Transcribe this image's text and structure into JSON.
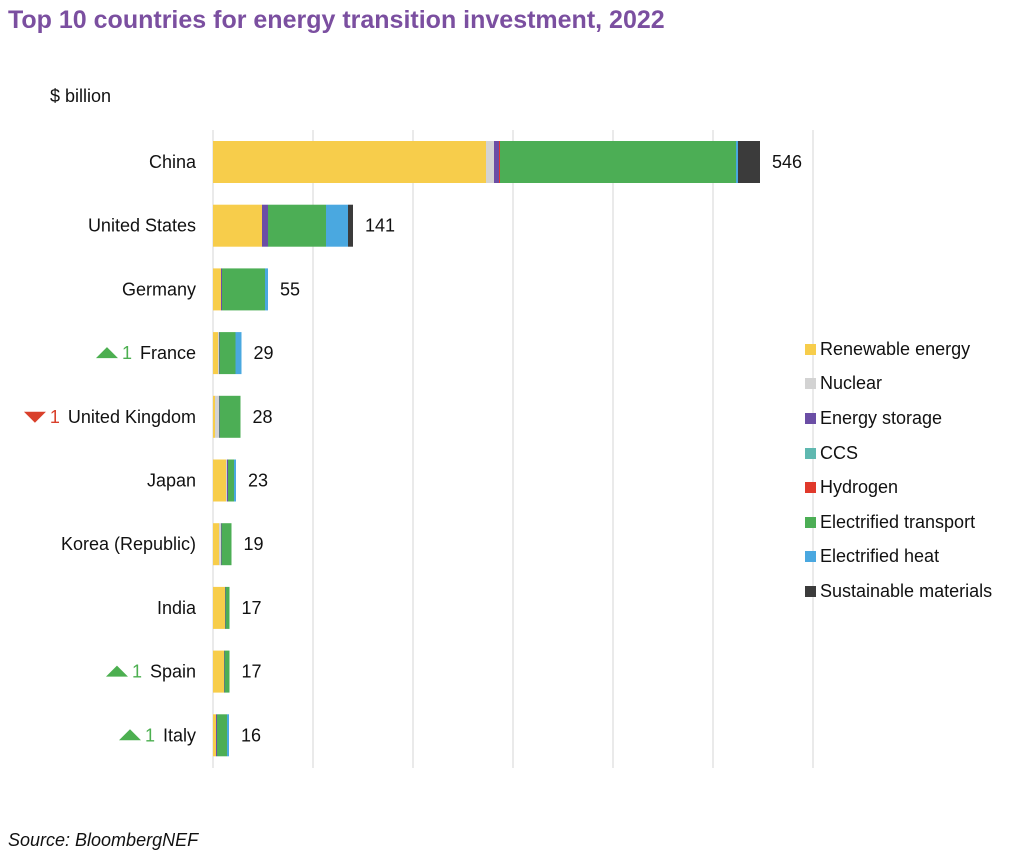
{
  "title": "Top 10 countries for energy transition investment, 2022",
  "source": "Source: BloombergNEF",
  "colors": {
    "up": "#4caf50",
    "down": "#d9402b",
    "grid": "#d4d4d4"
  },
  "chart_data": {
    "type": "bar",
    "orientation": "horizontal",
    "stacked": true,
    "title": "Top 10 countries for energy transition investment, 2022",
    "unit_label": "$ billion",
    "xlim": [
      0,
      600
    ],
    "grid": true,
    "legend_position": "right",
    "categories": [
      "China",
      "United States",
      "Germany",
      "France",
      "United Kingdom",
      "Japan",
      "Korea (Republic)",
      "India",
      "Spain",
      "Italy"
    ],
    "totals": [
      "546",
      "141",
      "55",
      "29",
      "28",
      "23",
      "19",
      "17",
      "17",
      "16"
    ],
    "rank_change": [
      null,
      null,
      null,
      {
        "dir": "up",
        "value": "1"
      },
      {
        "dir": "down",
        "value": "1"
      },
      null,
      null,
      null,
      {
        "dir": "up",
        "value": "1"
      },
      {
        "dir": "up",
        "value": "1"
      }
    ],
    "series": [
      {
        "name": "Renewable energy",
        "color": "#f7cd4b",
        "values": [
          273,
          49,
          8,
          5,
          2,
          13,
          6,
          12,
          11,
          3
        ]
      },
      {
        "name": "Nuclear",
        "color": "#d3d3d3",
        "values": [
          8,
          0,
          0,
          1,
          4,
          1,
          2,
          0,
          0,
          0
        ]
      },
      {
        "name": "Energy storage",
        "color": "#6b4ea5",
        "values": [
          5,
          6,
          1,
          0.5,
          0.5,
          1,
          0.5,
          0.5,
          0.5,
          1
        ]
      },
      {
        "name": "CCS",
        "color": "#5fb8b0",
        "values": [
          0,
          0,
          0,
          0,
          0,
          0,
          0,
          0,
          0,
          0
        ]
      },
      {
        "name": "Hydrogen",
        "color": "#e0392b",
        "values": [
          1,
          0,
          0,
          0,
          0,
          0,
          0,
          0,
          0,
          0
        ]
      },
      {
        "name": "Electrified transport",
        "color": "#4cae55",
        "values": [
          236,
          58,
          43,
          16,
          21,
          6,
          10,
          4,
          5,
          10
        ]
      },
      {
        "name": "Electrified heat",
        "color": "#4aa8e0",
        "values": [
          2,
          22,
          3,
          6,
          0,
          2,
          0,
          0,
          0,
          2
        ]
      },
      {
        "name": "Sustainable materials",
        "color": "#3b3b3b",
        "values": [
          22,
          5,
          0,
          0,
          0,
          0,
          0,
          0,
          0,
          0
        ]
      }
    ]
  }
}
